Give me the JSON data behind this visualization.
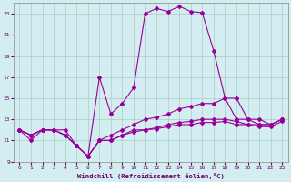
{
  "xlabel": "Windchill (Refroidissement éolien,°C)",
  "background_color": "#d4edf0",
  "grid_color": "#aacccc",
  "line_color": "#990099",
  "x": [
    0,
    1,
    2,
    3,
    4,
    5,
    6,
    7,
    8,
    9,
    10,
    11,
    12,
    13,
    14,
    15,
    16,
    17,
    18,
    19,
    20,
    21,
    22,
    23
  ],
  "y_main": [
    12,
    11,
    12,
    12,
    12,
    10.5,
    9.5,
    17,
    13.5,
    14.5,
    16,
    23,
    23.5,
    23.2,
    23.7,
    23.2,
    23.1,
    19.5,
    15,
    15,
    13,
    13,
    12.5,
    13
  ],
  "y_line2": [
    12,
    11.5,
    12,
    12,
    11.5,
    10.5,
    9.5,
    11,
    11.5,
    12,
    12.5,
    13,
    13.2,
    13.5,
    14,
    14.2,
    14.5,
    14.5,
    15,
    13,
    13,
    12.5,
    12.5,
    13
  ],
  "y_line3": [
    12,
    11.5,
    12,
    12,
    11.5,
    10.5,
    9.5,
    11,
    11,
    11.5,
    12,
    12,
    12.2,
    12.5,
    12.7,
    12.8,
    13,
    13,
    13,
    12.8,
    12.5,
    12.5,
    12.5,
    13
  ],
  "y_line4": [
    12,
    11.5,
    12,
    12,
    11.5,
    10.5,
    9.5,
    11,
    11,
    11.5,
    11.8,
    12,
    12.1,
    12.3,
    12.5,
    12.5,
    12.7,
    12.7,
    12.8,
    12.5,
    12.5,
    12.3,
    12.3,
    12.8
  ],
  "ylim": [
    9,
    24
  ],
  "xlim": [
    -0.5,
    23.5
  ],
  "yticks": [
    9,
    11,
    13,
    15,
    17,
    19,
    21,
    23
  ],
  "xticks": [
    0,
    1,
    2,
    3,
    4,
    5,
    6,
    7,
    8,
    9,
    10,
    11,
    12,
    13,
    14,
    15,
    16,
    17,
    18,
    19,
    20,
    21,
    22,
    23
  ]
}
